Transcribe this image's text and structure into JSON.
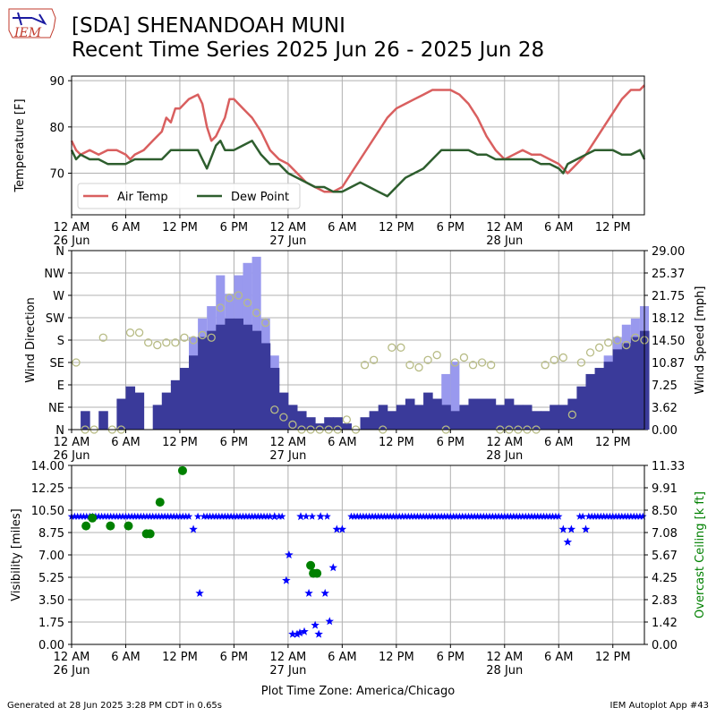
{
  "header": {
    "title_line1": "[SDA] SHENANDOAH MUNI",
    "title_line2": "Recent Time Series 2025 Jun 26 - 2025 Jun 28",
    "logo_text": "IEM"
  },
  "footer": {
    "left": "Generated at 28 Jun 2025 3:28 PM CDT in 0.65s",
    "right": "IEM Autoplot App #43"
  },
  "x_axis": {
    "range_hours": [
      0,
      63.5
    ],
    "ticks": [
      {
        "h": 0,
        "label": "12 AM",
        "sub": "26 Jun"
      },
      {
        "h": 6,
        "label": "6 AM",
        "sub": ""
      },
      {
        "h": 12,
        "label": "12 PM",
        "sub": ""
      },
      {
        "h": 18,
        "label": "6 PM",
        "sub": ""
      },
      {
        "h": 24,
        "label": "12 AM",
        "sub": "27 Jun"
      },
      {
        "h": 30,
        "label": "6 AM",
        "sub": ""
      },
      {
        "h": 36,
        "label": "12 PM",
        "sub": ""
      },
      {
        "h": 42,
        "label": "6 PM",
        "sub": ""
      },
      {
        "h": 48,
        "label": "12 AM",
        "sub": "28 Jun"
      },
      {
        "h": 54,
        "label": "6 AM",
        "sub": ""
      },
      {
        "h": 60,
        "label": "12 PM",
        "sub": ""
      }
    ],
    "timezone_label": "Plot Time Zone: America/Chicago"
  },
  "chart_data": [
    {
      "type": "line",
      "ylabel": "Temperature [F]",
      "ylim": [
        61,
        91
      ],
      "yticks": [
        70,
        80,
        90
      ],
      "grid": true,
      "legend": "lower-left",
      "colors": {
        "air": "#d95f5f",
        "dew": "#2e5e2e"
      },
      "series": [
        {
          "name": "Air Temp",
          "x": [
            0,
            0.5,
            1,
            2,
            3,
            4,
            5,
            6,
            6.5,
            7,
            8,
            9,
            10,
            10.5,
            11,
            11.5,
            12,
            13,
            14,
            14.5,
            15,
            15.5,
            16,
            17,
            17.5,
            18,
            19,
            20,
            21,
            22,
            23,
            24,
            25,
            26,
            27,
            28,
            29,
            30,
            31,
            32,
            33,
            34,
            35,
            36,
            37,
            38,
            39,
            40,
            41,
            42,
            43,
            44,
            45,
            46,
            47,
            48,
            49,
            50,
            51,
            52,
            53,
            54,
            55,
            56,
            57,
            58,
            59,
            60,
            61,
            62,
            63,
            63.5
          ],
          "y": [
            77,
            75,
            74,
            75,
            74,
            75,
            75,
            74,
            73,
            74,
            75,
            77,
            79,
            82,
            81,
            84,
            84,
            86,
            87,
            85,
            80,
            77,
            78,
            82,
            86,
            86,
            84,
            82,
            79,
            75,
            73,
            72,
            70,
            68,
            67,
            66,
            66,
            67,
            70,
            73,
            76,
            79,
            82,
            84,
            85,
            86,
            87,
            88,
            88,
            88,
            87,
            85,
            82,
            78,
            75,
            73,
            74,
            75,
            74,
            74,
            73,
            72,
            70,
            72,
            74,
            77,
            80,
            83,
            86,
            88,
            88,
            89
          ]
        },
        {
          "name": "Dew Point",
          "x": [
            0,
            0.5,
            1,
            2,
            3,
            4,
            5,
            6,
            7,
            8,
            9,
            10,
            11,
            12,
            13,
            14,
            14.5,
            15,
            16,
            16.5,
            17,
            18,
            19,
            20,
            21,
            22,
            23,
            24,
            25,
            26,
            27,
            28,
            29,
            30,
            31,
            32,
            33,
            34,
            35,
            36,
            37,
            38,
            39,
            40,
            41,
            42,
            43,
            44,
            45,
            46,
            47,
            48,
            49,
            50,
            51,
            52,
            53,
            54,
            54.5,
            55,
            56,
            57,
            58,
            59,
            60,
            61,
            62,
            63,
            63.5
          ],
          "y": [
            75,
            73,
            74,
            73,
            73,
            72,
            72,
            72,
            73,
            73,
            73,
            73,
            75,
            75,
            75,
            75,
            73,
            71,
            76,
            77,
            75,
            75,
            76,
            77,
            74,
            72,
            72,
            70,
            69,
            68,
            67,
            67,
            66,
            66,
            67,
            68,
            67,
            66,
            65,
            67,
            69,
            70,
            71,
            73,
            75,
            75,
            75,
            75,
            74,
            74,
            73,
            73,
            73,
            73,
            73,
            72,
            72,
            71,
            70,
            72,
            73,
            74,
            75,
            75,
            75,
            74,
            74,
            75,
            73
          ]
        }
      ]
    },
    {
      "type": "bar",
      "ylabel": "Wind Direction",
      "y2label": "Wind Speed [mph]",
      "ylim": [
        0,
        360
      ],
      "ytick_labels": [
        "N",
        "NE",
        "E",
        "SE",
        "S",
        "SW",
        "W",
        "NW",
        "N"
      ],
      "y2lim": [
        0,
        29
      ],
      "y2tick_labels": [
        "0.00",
        "3.62",
        "7.25",
        "10.87",
        "14.50",
        "18.12",
        "21.75",
        "25.37",
        "29.00"
      ],
      "grid": true,
      "colors": {
        "sustained": "#3a3a9a",
        "gust": "#9999ee",
        "direction": "#b8bc86"
      },
      "hourly_speed_mph": [
        0,
        3,
        0,
        3,
        0,
        5,
        7,
        6,
        0,
        4,
        6,
        8,
        10,
        12,
        15,
        16,
        17,
        18,
        18,
        17,
        16,
        14,
        10,
        6,
        4,
        3,
        2,
        1,
        2,
        2,
        1,
        0,
        2,
        3,
        4,
        3,
        4,
        5,
        4,
        6,
        5,
        4,
        3,
        4,
        5,
        5,
        5,
        4,
        5,
        4,
        4,
        3,
        3,
        4,
        4,
        5,
        7,
        9,
        10,
        11,
        13,
        14,
        15,
        16
      ],
      "hourly_gust_mph": [
        0,
        0,
        0,
        0,
        0,
        0,
        0,
        0,
        0,
        0,
        0,
        0,
        0,
        15,
        18,
        20,
        25,
        22,
        25,
        27,
        28,
        18,
        12,
        0,
        0,
        0,
        0,
        0,
        0,
        0,
        0,
        0,
        0,
        0,
        0,
        0,
        0,
        0,
        0,
        0,
        0,
        9,
        11,
        0,
        0,
        0,
        0,
        0,
        0,
        0,
        0,
        0,
        0,
        0,
        0,
        0,
        0,
        0,
        0,
        12,
        15,
        17,
        18,
        20
      ],
      "hourly_direction_deg": [
        135,
        0,
        0,
        185,
        0,
        0,
        195,
        195,
        175,
        170,
        175,
        175,
        185,
        180,
        190,
        185,
        245,
        265,
        270,
        255,
        235,
        215,
        40,
        25,
        10,
        0,
        0,
        0,
        0,
        0,
        20,
        0,
        130,
        140,
        0,
        165,
        165,
        130,
        125,
        140,
        150,
        0,
        135,
        145,
        130,
        135,
        130,
        0,
        0,
        0,
        0,
        0,
        130,
        140,
        145,
        30,
        135,
        155,
        165,
        175,
        180,
        170,
        185,
        180
      ]
    },
    {
      "type": "scatter",
      "ylabel": "Visibility [miles]",
      "y2label": "Overcast Ceiling [k ft]",
      "ylim": [
        0,
        14
      ],
      "ytick_labels": [
        "0.00",
        "1.75",
        "3.50",
        "5.25",
        "7.00",
        "8.75",
        "10.50",
        "12.25",
        "14.00"
      ],
      "y2lim": [
        0,
        11.33
      ],
      "y2tick_labels": [
        "0.00",
        "1.42",
        "2.83",
        "4.25",
        "5.67",
        "7.08",
        "8.50",
        "9.91",
        "11.33"
      ],
      "grid": true,
      "colors": {
        "visibility": "#0000ff",
        "ceiling": "#008000"
      },
      "visibility_default_miles": 10,
      "visibility_exceptions": [
        {
          "h": 13.5,
          "v": 9
        },
        {
          "h": 14.2,
          "v": 4
        },
        {
          "h": 23.8,
          "v": 5
        },
        {
          "h": 24.1,
          "v": 7
        },
        {
          "h": 24.5,
          "v": 0.8
        },
        {
          "h": 25,
          "v": 0.8
        },
        {
          "h": 25.3,
          "v": 0.9
        },
        {
          "h": 25.8,
          "v": 1
        },
        {
          "h": 26.3,
          "v": 4
        },
        {
          "h": 27,
          "v": 1.5
        },
        {
          "h": 27.4,
          "v": 0.8
        },
        {
          "h": 28.1,
          "v": 4
        },
        {
          "h": 28.6,
          "v": 1.8
        },
        {
          "h": 29,
          "v": 6
        },
        {
          "h": 27.6,
          "v": 10
        },
        {
          "h": 29.4,
          "v": 9
        },
        {
          "h": 30,
          "v": 9
        },
        {
          "h": 54.5,
          "v": 9
        },
        {
          "h": 55,
          "v": 8
        },
        {
          "h": 55.4,
          "v": 9
        },
        {
          "h": 57,
          "v": 9
        },
        {
          "h": 25.4,
          "v": 10
        },
        {
          "h": 22.5,
          "v": 10
        }
      ],
      "visibility_gaps_hours": [
        [
          29.1,
          30.8
        ],
        [
          55.6,
          56.2
        ]
      ],
      "ceiling_points": [
        {
          "h": 1.6,
          "k": 7.5
        },
        {
          "h": 2.3,
          "k": 8.0
        },
        {
          "h": 4.3,
          "k": 7.5
        },
        {
          "h": 6.3,
          "k": 7.5
        },
        {
          "h": 8.3,
          "k": 7.0
        },
        {
          "h": 8.7,
          "k": 7.0
        },
        {
          "h": 9.8,
          "k": 9.0
        },
        {
          "h": 12.3,
          "k": 11.0
        },
        {
          "h": 26.5,
          "k": 5.0
        },
        {
          "h": 26.8,
          "k": 4.5
        },
        {
          "h": 27.2,
          "k": 4.5
        }
      ]
    }
  ]
}
